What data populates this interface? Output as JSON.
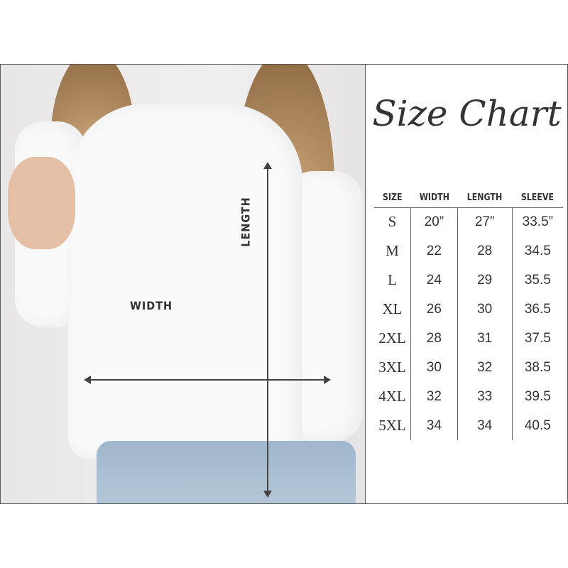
{
  "diagram": {
    "length_label": "LENGTH",
    "width_label": "WIDTH"
  },
  "chart": {
    "title": "Size Chart",
    "columns": [
      "SIZE",
      "WIDTH",
      "LENGTH",
      "SLEEVE"
    ],
    "rows": [
      [
        "S",
        "20”",
        "27”",
        "33.5”"
      ],
      [
        "M",
        "22",
        "28",
        "34.5"
      ],
      [
        "L",
        "24",
        "29",
        "35.5"
      ],
      [
        "XL",
        "26",
        "30",
        "36.5"
      ],
      [
        "2XL",
        "28",
        "31",
        "37.5"
      ],
      [
        "3XL",
        "30",
        "32",
        "38.5"
      ],
      [
        "4XL",
        "32",
        "33",
        "39.5"
      ],
      [
        "5XL",
        "34",
        "34",
        "40.5"
      ]
    ]
  },
  "colors": {
    "text": "#333333",
    "sweater": "#fafafa",
    "jeans": "#a9bfd3"
  }
}
